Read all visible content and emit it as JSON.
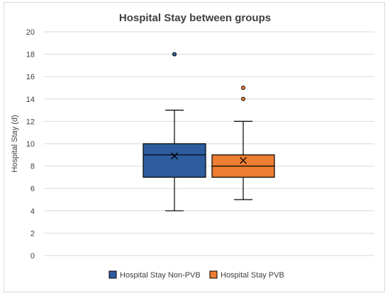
{
  "chart_data": {
    "type": "box",
    "title": "Hospital Stay between groups",
    "xlabel": "",
    "ylabel": "Hospital Stay (d)",
    "ylim": [
      0,
      20
    ],
    "yticks": [
      0,
      2,
      4,
      6,
      8,
      10,
      12,
      14,
      16,
      18,
      20
    ],
    "grid": true,
    "legend_position": "bottom",
    "series": [
      {
        "name": "Hospital Stay Non-PVB",
        "color": "#2e5c9e",
        "whisker_low": 4,
        "q1": 7,
        "median": 9,
        "q3": 10,
        "whisker_high": 13,
        "mean": 8.9,
        "outliers": [
          18
        ]
      },
      {
        "name": "Hospital Stay PVB",
        "color": "#ed7d31",
        "whisker_low": 5,
        "q1": 7,
        "median": 8,
        "q3": 9,
        "whisker_high": 12,
        "mean": 8.5,
        "outliers": [
          14,
          15
        ]
      }
    ]
  }
}
